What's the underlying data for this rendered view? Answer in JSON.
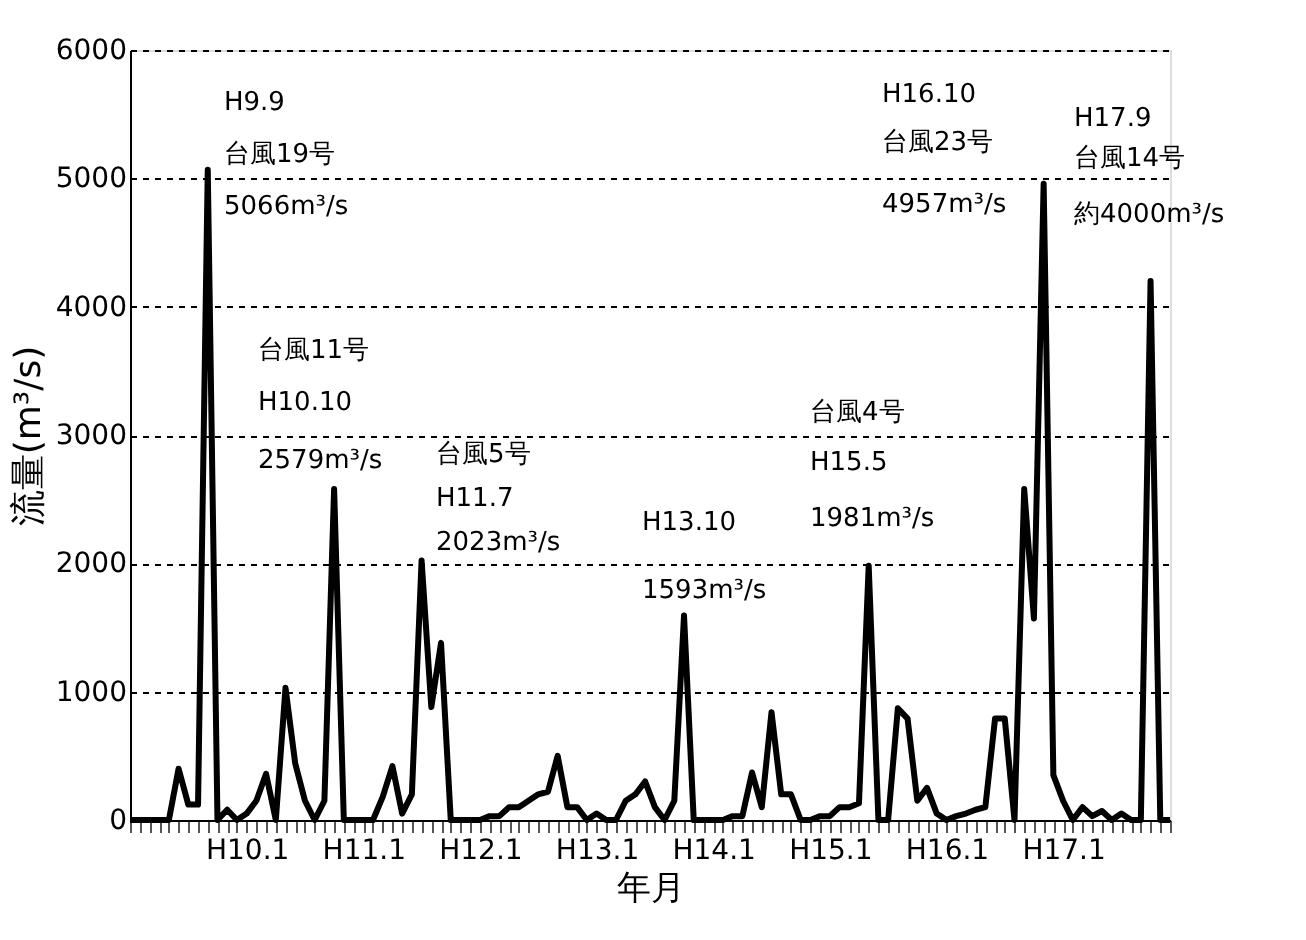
{
  "chart_data": {
    "type": "line",
    "xlabel": "年月",
    "ylabel": "流量(m³/s)",
    "categories": [
      null,
      null,
      null,
      null,
      null,
      null,
      null,
      null,
      null,
      null,
      null,
      null,
      "H10.1",
      null,
      null,
      null,
      null,
      null,
      null,
      null,
      null,
      null,
      null,
      null,
      "H11.1",
      null,
      null,
      null,
      null,
      null,
      null,
      null,
      null,
      null,
      null,
      null,
      "H12.1",
      null,
      null,
      null,
      null,
      null,
      null,
      null,
      null,
      null,
      null,
      null,
      "H13.1",
      null,
      null,
      null,
      null,
      null,
      null,
      null,
      null,
      null,
      null,
      null,
      "H14.1",
      null,
      null,
      null,
      null,
      null,
      null,
      null,
      null,
      null,
      null,
      null,
      "H15.1",
      null,
      null,
      null,
      null,
      null,
      null,
      null,
      null,
      null,
      null,
      null,
      "H16.1",
      null,
      null,
      null,
      null,
      null,
      null,
      null,
      null,
      null,
      null,
      null,
      "H17.1",
      null,
      null,
      null,
      null,
      null,
      null,
      null,
      null,
      null,
      null,
      null
    ],
    "series": [
      {
        "color": "#000000",
        "values": [
          0,
          0,
          0,
          0,
          0,
          400,
          120,
          120,
          5066,
          0,
          80,
          0,
          50,
          150,
          360,
          0,
          1030,
          440,
          150,
          0,
          150,
          2579,
          0,
          0,
          0,
          0,
          180,
          420,
          50,
          200,
          2023,
          880,
          1380,
          0,
          0,
          0,
          0,
          30,
          30,
          100,
          100,
          150,
          200,
          220,
          500,
          100,
          100,
          0,
          50,
          0,
          0,
          150,
          200,
          300,
          100,
          0,
          150,
          1593,
          0,
          0,
          0,
          0,
          30,
          30,
          370,
          100,
          840,
          200,
          200,
          0,
          0,
          30,
          30,
          100,
          100,
          130,
          1981,
          0,
          0,
          870,
          790,
          150,
          250,
          50,
          0,
          30,
          50,
          80,
          100,
          790,
          790,
          0,
          2580,
          1570,
          4957,
          350,
          150,
          0,
          100,
          30,
          70,
          0,
          50,
          0,
          0,
          4200,
          0,
          0
        ]
      }
    ],
    "ylim": [
      0,
      6000
    ],
    "yticks": [
      0,
      1000,
      2000,
      3000,
      4000,
      5000,
      6000
    ],
    "grid": "y",
    "line_style": "solid",
    "marker": "none",
    "annotations": [
      "H9.9",
      "台風19号",
      "5066m³/s",
      "台風11号",
      "H10.10",
      "2579m³/s",
      "台風5号",
      "H11.7",
      "2023m³/s",
      "H13.10",
      "1593m³/s",
      "台風4号",
      "H15.5",
      "1981m³/s",
      "H16.10",
      "台風23号",
      "4957m³/s",
      "H17.9",
      "台風14号",
      "約4000m³/s"
    ]
  }
}
